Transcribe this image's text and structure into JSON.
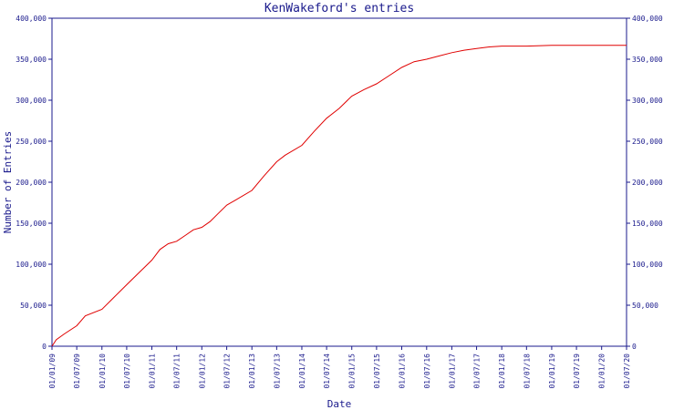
{
  "chart_data": {
    "type": "line",
    "title": "KenWakeford's entries",
    "xlabel": "Date",
    "ylabel": "Number of Entries",
    "ylim": [
      0,
      400000
    ],
    "y_ticks": [
      0,
      50000,
      100000,
      150000,
      200000,
      250000,
      300000,
      350000,
      400000
    ],
    "y_tick_labels": [
      "0",
      "50,000",
      "100,000",
      "150,000",
      "200,000",
      "250,000",
      "300,000",
      "350,000",
      "400,000"
    ],
    "x_tick_labels": [
      "01/01/09",
      "01/07/09",
      "01/01/10",
      "01/07/10",
      "01/01/11",
      "01/07/11",
      "01/01/12",
      "01/07/12",
      "01/01/13",
      "01/07/13",
      "01/01/14",
      "01/07/14",
      "01/01/15",
      "01/07/15",
      "01/01/16",
      "01/07/16",
      "01/01/17",
      "01/07/17",
      "01/01/18",
      "01/07/18",
      "01/01/19",
      "01/07/19",
      "01/01/20",
      "01/07/20"
    ],
    "grid": false,
    "line_color": "#e00000",
    "axis_color": "#1a1a8c",
    "series": [
      {
        "x": [
          "01/01/09",
          "01/02/09",
          "01/04/09",
          "01/07/09",
          "01/09/09",
          "01/01/10",
          "01/04/10",
          "01/07/10",
          "01/10/10",
          "01/01/11",
          "01/03/11",
          "01/05/11",
          "01/07/11",
          "01/09/11",
          "01/11/11",
          "01/01/12",
          "01/03/12",
          "01/05/12",
          "01/07/12",
          "01/09/12",
          "01/01/13",
          "01/04/13",
          "01/07/13",
          "01/09/13",
          "01/01/14",
          "01/04/14",
          "01/07/14",
          "01/10/14",
          "01/01/15",
          "01/04/15",
          "01/07/15",
          "01/10/15",
          "01/01/16",
          "01/04/16",
          "01/07/16",
          "01/10/16",
          "01/01/17",
          "01/04/17",
          "01/07/17",
          "01/10/17",
          "01/01/18",
          "01/07/18",
          "01/01/19",
          "01/07/19",
          "01/01/20",
          "01/07/20"
        ],
        "y": [
          0,
          8000,
          15000,
          25000,
          37000,
          45000,
          60000,
          75000,
          90000,
          105000,
          118000,
          125000,
          128000,
          135000,
          142000,
          145000,
          152000,
          162000,
          172000,
          178000,
          190000,
          208000,
          225000,
          233000,
          245000,
          262000,
          278000,
          290000,
          305000,
          313000,
          320000,
          330000,
          340000,
          347000,
          350000,
          354000,
          358000,
          361000,
          363000,
          365000,
          366000,
          366000,
          367000,
          367000,
          367000,
          367000
        ]
      }
    ]
  }
}
